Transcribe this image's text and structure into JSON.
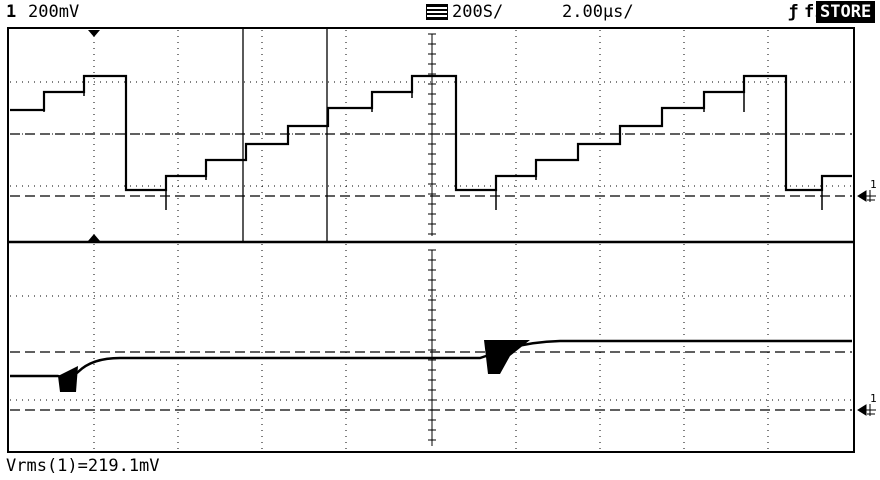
{
  "header": {
    "channel_number": "1",
    "channel_scale": "200mV",
    "timebase_icon": "sample-memory-icon",
    "sample_rate": "200S/",
    "time_per_div": "2.00µs/",
    "trigger_label": "f1",
    "mode_badge": "STORE"
  },
  "markers": {
    "upper_ground": "1",
    "lower_ground": "1"
  },
  "measurement": {
    "text": "Vrms(1)=219.1mV"
  },
  "colors": {
    "background": "#ffffff",
    "trace": "#000000",
    "badge_bg": "#000000",
    "badge_fg": "#ffffff"
  }
}
